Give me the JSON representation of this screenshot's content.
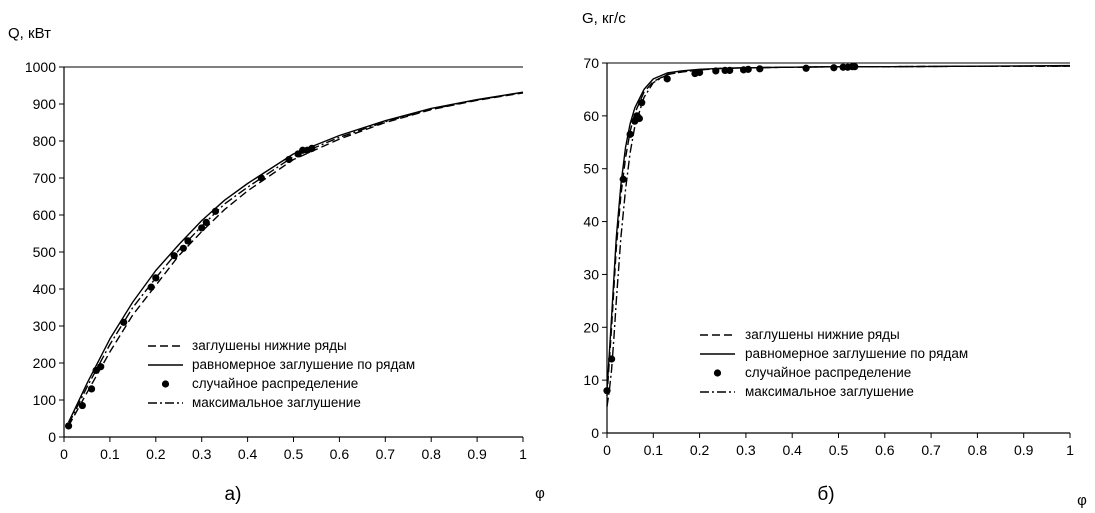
{
  "chart_data": [
    {
      "type": "line",
      "panel_label": "а)",
      "ylabel": "Q, кВт",
      "xlabel": "φ",
      "xlim": [
        0,
        1
      ],
      "ylim": [
        0,
        1000
      ],
      "xticks": [
        "0",
        "0.1",
        "0.2",
        "0.3",
        "0.4",
        "0.5",
        "0.6",
        "0.7",
        "0.8",
        "0.9",
        "1"
      ],
      "yticks": [
        "0",
        "100",
        "200",
        "300",
        "400",
        "500",
        "600",
        "700",
        "800",
        "900",
        "1000"
      ],
      "grid": false,
      "legend_position": "bottom-right",
      "series": [
        {
          "name": "заглушены нижние ряды",
          "style": "dashed",
          "x": [
            0.01,
            0.05,
            0.1,
            0.15,
            0.2,
            0.25,
            0.3,
            0.35,
            0.4,
            0.5,
            0.6,
            0.7,
            0.8,
            0.9,
            1.0
          ],
          "y": [
            30,
            120,
            230,
            330,
            410,
            490,
            555,
            615,
            665,
            750,
            805,
            850,
            885,
            910,
            930
          ]
        },
        {
          "name": "равномерное заглушение по рядам",
          "style": "solid",
          "x": [
            0.01,
            0.05,
            0.1,
            0.15,
            0.2,
            0.25,
            0.3,
            0.35,
            0.4,
            0.5,
            0.6,
            0.7,
            0.8,
            0.9,
            1.0
          ],
          "y": [
            40,
            145,
            265,
            365,
            450,
            520,
            585,
            640,
            685,
            765,
            815,
            855,
            888,
            912,
            932
          ]
        },
        {
          "name": "случайное распределение",
          "style": "markers",
          "x": [
            0.01,
            0.04,
            0.06,
            0.07,
            0.08,
            0.13,
            0.19,
            0.2,
            0.24,
            0.26,
            0.27,
            0.3,
            0.31,
            0.33,
            0.43,
            0.49,
            0.51,
            0.52,
            0.53,
            0.54
          ],
          "y": [
            30,
            85,
            130,
            180,
            190,
            310,
            405,
            430,
            490,
            510,
            530,
            565,
            580,
            610,
            700,
            750,
            765,
            775,
            775,
            780
          ]
        },
        {
          "name": "максимальное заглушение",
          "style": "dashdot",
          "x": [
            0.01,
            0.05,
            0.1,
            0.15,
            0.2,
            0.25,
            0.3,
            0.35,
            0.4,
            0.5,
            0.6,
            0.7,
            0.8,
            0.9,
            1.0
          ],
          "y": [
            35,
            135,
            250,
            350,
            430,
            505,
            570,
            630,
            675,
            758,
            810,
            852,
            886,
            911,
            931
          ]
        }
      ]
    },
    {
      "type": "line",
      "panel_label": "б)",
      "ylabel": "G, кг/с",
      "xlabel": "φ",
      "xlim": [
        0,
        1
      ],
      "ylim": [
        0,
        70
      ],
      "xticks": [
        "0",
        "0.1",
        "0.2",
        "0.3",
        "0.4",
        "0.5",
        "0.6",
        "0.7",
        "0.8",
        "0.9",
        "1"
      ],
      "yticks": [
        "0",
        "10",
        "20",
        "30",
        "40",
        "50",
        "60",
        "70"
      ],
      "grid": false,
      "legend_position": "bottom-right",
      "series": [
        {
          "name": "заглушены нижние ряды",
          "style": "dashed",
          "x": [
            0.0,
            0.01,
            0.02,
            0.03,
            0.04,
            0.05,
            0.06,
            0.08,
            0.1,
            0.13,
            0.16,
            0.2,
            0.25,
            0.3,
            0.4,
            0.5,
            0.6,
            0.8,
            1.0
          ],
          "y": [
            7,
            20,
            35,
            45,
            52,
            57,
            60.5,
            64.5,
            66.5,
            67.8,
            68.3,
            68.7,
            69.0,
            69.1,
            69.2,
            69.3,
            69.3,
            69.4,
            69.4
          ]
        },
        {
          "name": "равномерное заглушение по рядам",
          "style": "solid",
          "x": [
            0.0,
            0.01,
            0.02,
            0.03,
            0.04,
            0.05,
            0.06,
            0.08,
            0.1,
            0.13,
            0.16,
            0.2,
            0.25,
            0.3,
            0.4,
            0.5,
            0.6,
            0.8,
            1.0
          ],
          "y": [
            8,
            22,
            37,
            47,
            54,
            58.5,
            61.5,
            65,
            67,
            68.1,
            68.5,
            68.8,
            69.0,
            69.1,
            69.2,
            69.3,
            69.3,
            69.4,
            69.5
          ]
        },
        {
          "name": "случайное распределение",
          "style": "markers",
          "x": [
            0.0,
            0.01,
            0.035,
            0.05,
            0.06,
            0.065,
            0.07,
            0.075,
            0.13,
            0.19,
            0.2,
            0.235,
            0.255,
            0.265,
            0.295,
            0.305,
            0.33,
            0.43,
            0.49,
            0.51,
            0.52,
            0.53,
            0.535
          ],
          "y": [
            8,
            14,
            48,
            56.5,
            59,
            60,
            59.5,
            62.5,
            67,
            68,
            68.2,
            68.5,
            68.6,
            68.6,
            68.7,
            68.8,
            68.9,
            69.0,
            69.1,
            69.2,
            69.2,
            69.3,
            69.3
          ]
        },
        {
          "name": "максимальное заглушение",
          "style": "dashdot",
          "x": [
            0.0,
            0.005,
            0.01,
            0.015,
            0.02,
            0.03,
            0.04,
            0.05,
            0.06,
            0.08,
            0.1,
            0.13,
            0.16,
            0.2,
            0.25,
            0.3,
            0.4,
            0.5,
            0.6,
            0.8,
            1.0
          ],
          "y": [
            5,
            8,
            12,
            18,
            25,
            37,
            46,
            53,
            58,
            63.5,
            66.3,
            67.8,
            68.3,
            68.7,
            69.0,
            69.1,
            69.2,
            69.3,
            69.3,
            69.4,
            69.4
          ]
        }
      ]
    }
  ]
}
